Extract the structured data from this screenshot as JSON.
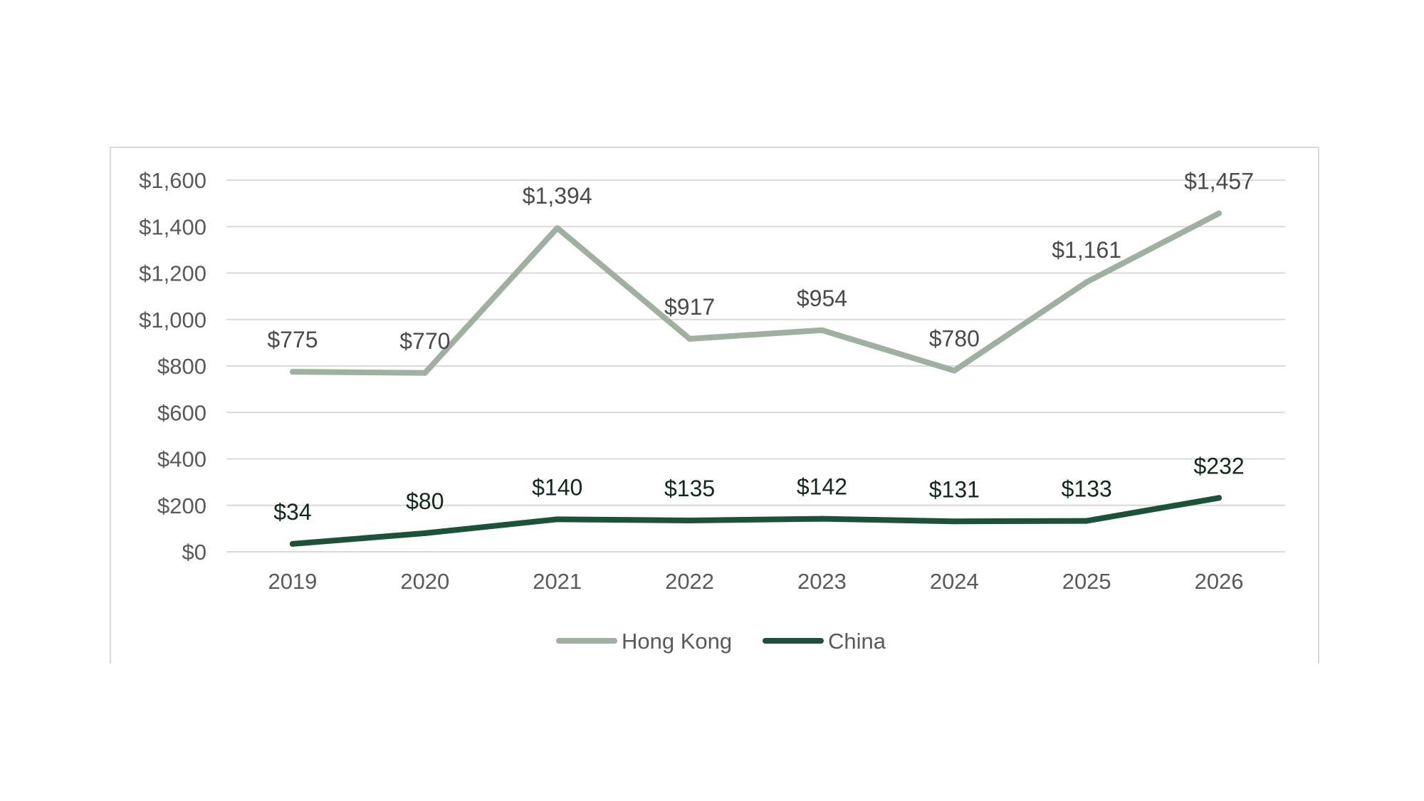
{
  "chart_data": {
    "type": "line",
    "categories": [
      "2019",
      "2020",
      "2021",
      "2022",
      "2023",
      "2024",
      "2025",
      "2026"
    ],
    "series": [
      {
        "name": "Hong Kong",
        "values": [
          775,
          770,
          1394,
          917,
          954,
          780,
          1161,
          1457
        ],
        "labels": [
          "$775",
          "$770",
          "$1,394",
          "$917",
          "$954",
          "$780",
          "$1,161",
          "$1,457"
        ],
        "color": "#9fb0a0",
        "label_color": "#4a4a4a"
      },
      {
        "name": "China",
        "values": [
          34,
          80,
          140,
          135,
          142,
          131,
          133,
          232
        ],
        "labels": [
          "$34",
          "$80",
          "$140",
          "$135",
          "$142",
          "$131",
          "$133",
          "$232"
        ],
        "color": "#1b5338",
        "label_color": "#0f2a1a"
      }
    ],
    "y_ticks": [
      0,
      200,
      400,
      600,
      800,
      1000,
      1200,
      1400,
      1600
    ],
    "y_tick_labels": [
      "$0",
      "$200",
      "$400",
      "$600",
      "$800",
      "$1,000",
      "$1,200",
      "$1,400",
      "$1,600"
    ],
    "ylim": [
      0,
      1600
    ],
    "grid": true,
    "legend_position": "bottom",
    "title": "",
    "xlabel": "",
    "ylabel": ""
  }
}
